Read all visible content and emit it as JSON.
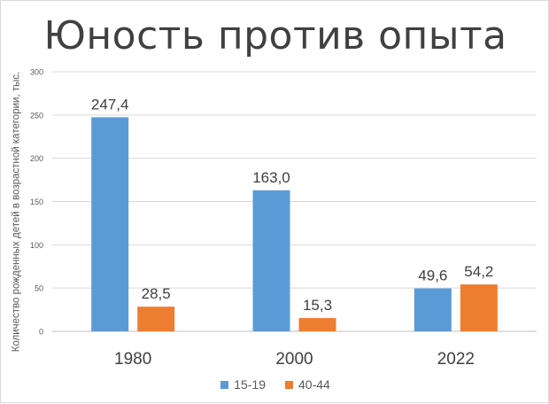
{
  "chart_data": {
    "type": "bar",
    "title": "Юность против опыта",
    "ylabel": "Количество рожденных детей в возрастной категории, тыс.",
    "xlabel": "",
    "categories": [
      "1980",
      "2000",
      "2022"
    ],
    "series": [
      {
        "name": "15-19",
        "color": "#5b9bd5",
        "values": [
          247.4,
          163.0,
          49.6
        ],
        "labels": [
          "247,4",
          "163,0",
          "49,6"
        ]
      },
      {
        "name": "40-44",
        "color": "#ed7d31",
        "values": [
          28.5,
          15.3,
          54.2
        ],
        "labels": [
          "28,5",
          "15,3",
          "54,2"
        ]
      }
    ],
    "ylim": [
      0,
      300
    ],
    "yticks": [
      0,
      50,
      100,
      150,
      200,
      250,
      300
    ],
    "grid": true,
    "legend": "bottom"
  }
}
